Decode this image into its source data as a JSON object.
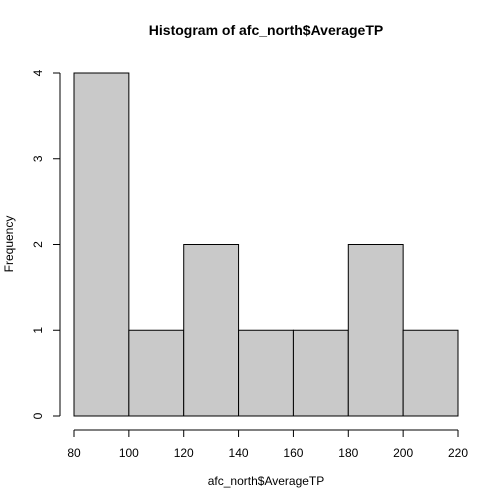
{
  "chart_data": {
    "type": "bar",
    "subtype": "histogram",
    "title": "Histogram of afc_north$AverageTP",
    "xlabel": "afc_north$AverageTP",
    "ylabel": "Frequency",
    "bins": [
      {
        "start": 80,
        "end": 100,
        "count": 4
      },
      {
        "start": 100,
        "end": 120,
        "count": 1
      },
      {
        "start": 120,
        "end": 140,
        "count": 2
      },
      {
        "start": 140,
        "end": 160,
        "count": 1
      },
      {
        "start": 160,
        "end": 180,
        "count": 1
      },
      {
        "start": 180,
        "end": 200,
        "count": 2
      },
      {
        "start": 200,
        "end": 220,
        "count": 1
      }
    ],
    "xlim": [
      80,
      220
    ],
    "ylim": [
      0,
      4
    ],
    "x_ticks": [
      80,
      100,
      120,
      140,
      160,
      180,
      200,
      220
    ],
    "y_ticks": [
      0,
      1,
      2,
      3,
      4
    ],
    "bar_color": "#c9c9c9",
    "grid": false
  }
}
